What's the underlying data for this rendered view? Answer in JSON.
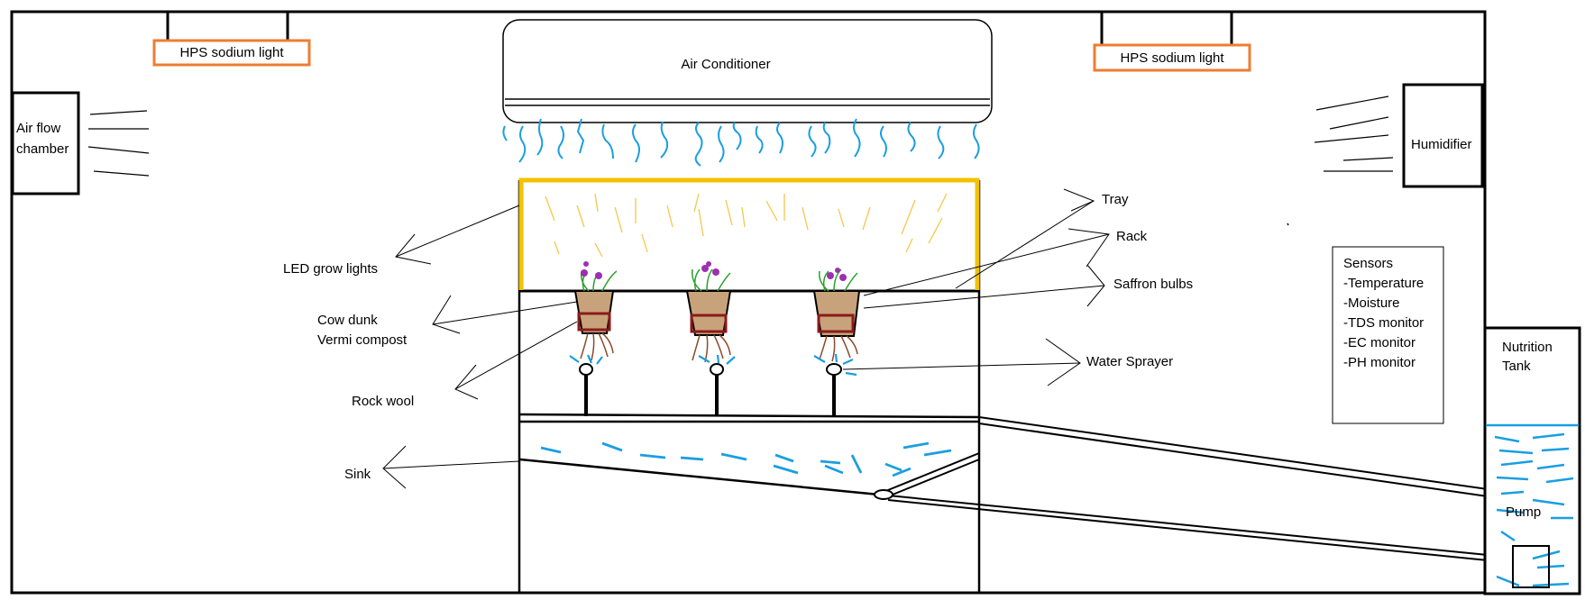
{
  "labels": {
    "hps_left": "HPS sodium light",
    "hps_right": "HPS sodium light",
    "air_conditioner": "Air Conditioner",
    "air_flow_line1": "Air flow",
    "air_flow_line2": "chamber",
    "humidifier": "Humidifier",
    "led": "LED grow lights",
    "cow_line1": "Cow dunk",
    "cow_line2": "Vermi compost",
    "rock_wool": "Rock wool",
    "sink": "Sink",
    "tray": "Tray",
    "rack": "Rack",
    "saffron": "Saffron bulbs",
    "water_sprayer": "Water Sprayer",
    "nutrition_line1": "Nutrition",
    "nutrition_line2": "Tank",
    "pump": "Pump"
  },
  "sensors": {
    "title": "Sensors",
    "items": [
      "-Temperature",
      "-Moisture",
      "-TDS monitor",
      "-EC monitor",
      "-PH monitor"
    ]
  },
  "colors": {
    "outline": "#000000",
    "light_label_border": "#ed7d31",
    "water": "#1b9ee0",
    "led_frame": "#f2c200",
    "led_rays": "#f5c74a",
    "soil": "#c8a27a",
    "pot_band": "#8b1a1a",
    "flower": "#9b30b0",
    "stem": "#2ca02c",
    "roots": "#8b4a2b"
  }
}
